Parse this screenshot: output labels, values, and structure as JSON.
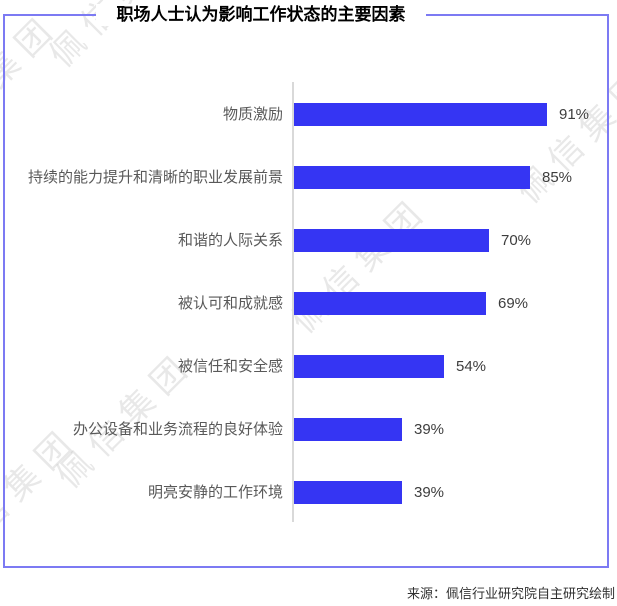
{
  "title": "职场人士认为影响工作状态的主要因素",
  "source": "来源：佩信行业研究院自主研究绘制",
  "watermark": {
    "text": "佩信集团"
  },
  "colors": {
    "bar": "#3535f3",
    "frame": "#7c7af3",
    "axis": "#d9d9d9"
  },
  "chart_data": {
    "type": "bar",
    "orientation": "horizontal",
    "title": "职场人士认为影响工作状态的主要因素",
    "categories": [
      "物质激励",
      "持续的能力提升和清晰的职业发展前景",
      "和谐的人际关系",
      "被认可和成就感",
      "被信任和安全感",
      "办公设备和业务流程的良好体验",
      "明亮安静的工作环境"
    ],
    "values": [
      91,
      85,
      70,
      69,
      54,
      39,
      39
    ],
    "unit": "%",
    "value_labels": [
      "91%",
      "85%",
      "70%",
      "69%",
      "54%",
      "39%",
      "39%"
    ],
    "xlim": [
      0,
      100
    ],
    "grid": false,
    "legend": "none"
  }
}
